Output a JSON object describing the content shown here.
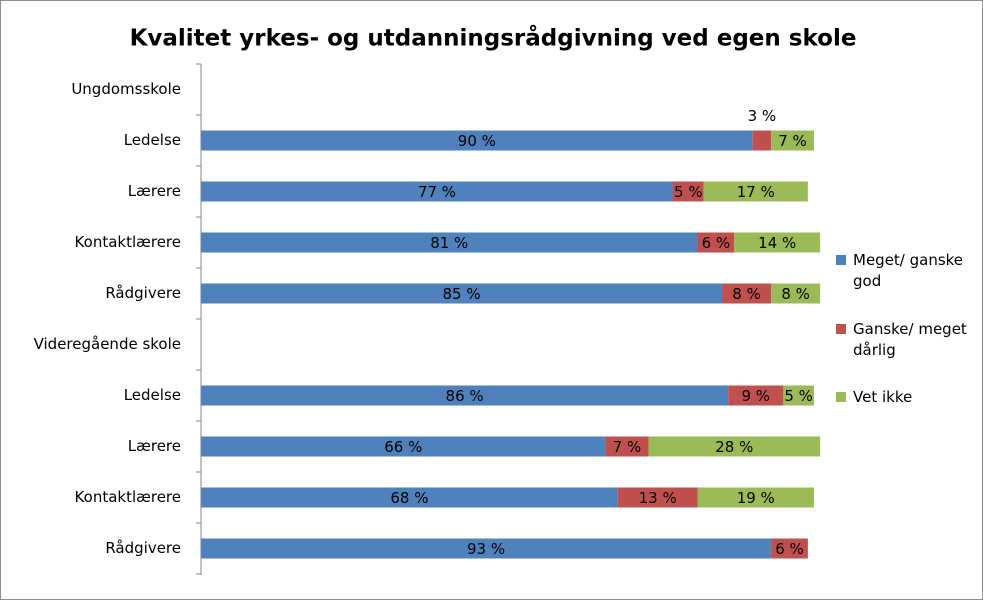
{
  "chart_data": {
    "type": "stacked-bar",
    "orientation": "horizontal",
    "title": "Kvalitet yrkes- og utdanningsrådgivning ved egen skole",
    "categories": [
      "Ungdomsskole",
      "Ledelse",
      "Lærere",
      "Kontaktlærere",
      "Rådgivere",
      "Videregående skole",
      "Ledelse",
      "Lærere",
      "Kontaktlærere",
      "Rådgivere"
    ],
    "xlim": [
      0,
      100
    ],
    "legend": "right",
    "series": [
      {
        "name": "Meget/ ganske god",
        "color": "#4f81bd",
        "values": [
          null,
          90,
          77,
          81,
          85,
          null,
          86,
          66,
          68,
          93
        ],
        "value_labels": [
          null,
          "90 %",
          "77 %",
          "81 %",
          "85 %",
          null,
          "86 %",
          "66 %",
          "68 %",
          "93 %"
        ]
      },
      {
        "name": "Ganske/ meget dårlig",
        "color": "#c0504d",
        "values": [
          null,
          3,
          5,
          6,
          8,
          null,
          9,
          7,
          13,
          6
        ],
        "value_labels": [
          null,
          "3 %",
          "5 %",
          "6 %",
          "8 %",
          null,
          "9 %",
          "7 %",
          "13 %",
          "6 %"
        ]
      },
      {
        "name": "Vet ikke",
        "color": "#9bbb59",
        "values": [
          null,
          7,
          17,
          14,
          8,
          null,
          5,
          28,
          19,
          null
        ],
        "value_labels": [
          null,
          "7 %",
          "17 %",
          "14 %",
          "8 %",
          null,
          "5 %",
          "28 %",
          "19 %",
          null
        ]
      }
    ]
  }
}
